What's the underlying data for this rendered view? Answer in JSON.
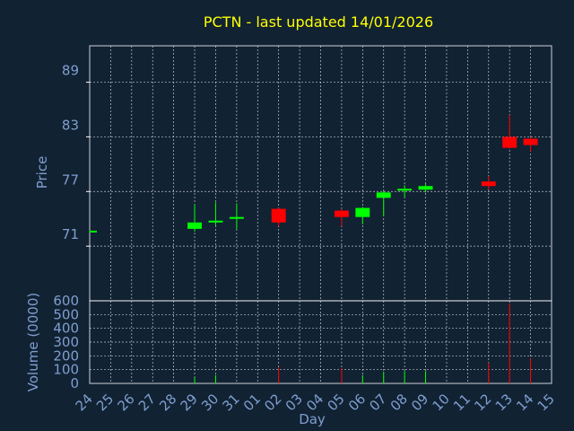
{
  "title": "PCTN - last updated 14/01/2026",
  "colors": {
    "background": "#112233",
    "title": "#ffff00",
    "axis_text": "#7f9fcf",
    "frame": "#ffffff",
    "grid": "#ffffff",
    "up": "#00ff00",
    "down": "#ff0000"
  },
  "chart_data": [
    {
      "type": "candlestick",
      "ylabel": "Price",
      "ylim": [
        65,
        93
      ],
      "yticks": [
        71,
        77,
        83,
        89
      ],
      "grid": true,
      "x_categories": [
        "24",
        "25",
        "26",
        "27",
        "28",
        "29",
        "30",
        "31",
        "01",
        "02",
        "03",
        "04",
        "05",
        "06",
        "07",
        "08",
        "09",
        "10",
        "11",
        "12",
        "13",
        "14",
        "15"
      ],
      "candles": [
        {
          "day": "24",
          "open": 72.6,
          "high": 72.7,
          "low": 72.5,
          "close": 72.7
        },
        {
          "day": "29",
          "open": 72.9,
          "high": 75.6,
          "low": 72.6,
          "close": 73.6
        },
        {
          "day": "30",
          "open": 73.6,
          "high": 75.8,
          "low": 73.3,
          "close": 73.8
        },
        {
          "day": "31",
          "open": 74.0,
          "high": 75.7,
          "low": 72.9,
          "close": 74.2
        },
        {
          "day": "02",
          "open": 75.1,
          "high": 75.2,
          "low": 73.2,
          "close": 73.6
        },
        {
          "day": "05",
          "open": 74.9,
          "high": 75.1,
          "low": 73.2,
          "close": 74.2
        },
        {
          "day": "06",
          "open": 74.2,
          "high": 75.3,
          "low": 73.4,
          "close": 75.2
        },
        {
          "day": "07",
          "open": 76.3,
          "high": 77.1,
          "low": 74.3,
          "close": 76.9
        },
        {
          "day": "08",
          "open": 77.1,
          "high": 77.7,
          "low": 76.4,
          "close": 77.3
        },
        {
          "day": "09",
          "open": 77.2,
          "high": 77.8,
          "low": 76.9,
          "close": 77.6
        },
        {
          "day": "12",
          "open": 78.1,
          "high": 78.7,
          "low": 77.2,
          "close": 77.6
        },
        {
          "day": "13",
          "open": 83.0,
          "high": 85.4,
          "low": 81.7,
          "close": 81.8
        },
        {
          "day": "14",
          "open": 82.8,
          "high": 83.0,
          "low": 81.4,
          "close": 82.1
        }
      ]
    },
    {
      "type": "bar",
      "ylabel": "Volume (0000)",
      "xlabel": "Day",
      "ylim": [
        0,
        600
      ],
      "yticks": [
        0,
        100,
        200,
        300,
        400,
        500,
        600
      ],
      "grid": true,
      "x_categories": [
        "24",
        "25",
        "26",
        "27",
        "28",
        "29",
        "30",
        "31",
        "01",
        "02",
        "03",
        "04",
        "05",
        "06",
        "07",
        "08",
        "09",
        "10",
        "11",
        "12",
        "13",
        "14",
        "15"
      ],
      "bars": [
        {
          "day": "29",
          "value": 45,
          "direction": "up"
        },
        {
          "day": "30",
          "value": 60,
          "direction": "up"
        },
        {
          "day": "02",
          "value": 120,
          "direction": "down"
        },
        {
          "day": "05",
          "value": 110,
          "direction": "down"
        },
        {
          "day": "06",
          "value": 60,
          "direction": "up"
        },
        {
          "day": "07",
          "value": 85,
          "direction": "up"
        },
        {
          "day": "08",
          "value": 90,
          "direction": "up"
        },
        {
          "day": "09",
          "value": 90,
          "direction": "up"
        },
        {
          "day": "12",
          "value": 150,
          "direction": "down"
        },
        {
          "day": "13",
          "value": 580,
          "direction": "down"
        },
        {
          "day": "14",
          "value": 180,
          "direction": "down"
        }
      ]
    }
  ]
}
